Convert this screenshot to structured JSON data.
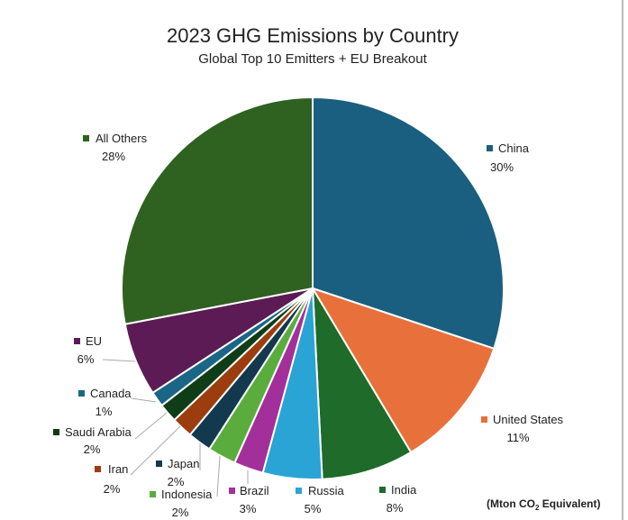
{
  "chart_data": {
    "type": "pie",
    "title": "2023 GHG Emissions by Country",
    "subtitle": "Global Top 10 Emitters + EU Breakout",
    "note": "(Mton CO2 Equivalent)",
    "note_parts": {
      "prefix": "(Mton CO",
      "subscript": "2",
      "suffix": " Equivalent)"
    },
    "start_angle_deg": 0,
    "direction": "clockwise",
    "legend": "none",
    "slices": [
      {
        "label": "China",
        "percent_label": "30%",
        "value": 30.1,
        "color": "#1a5f80"
      },
      {
        "label": "United States",
        "percent_label": "11%",
        "value": 11.3,
        "color": "#e8703a"
      },
      {
        "label": "India",
        "percent_label": "8%",
        "value": 7.8,
        "color": "#1e6b2a"
      },
      {
        "label": "Russia",
        "percent_label": "5%",
        "value": 5.0,
        "color": "#2aa3d5"
      },
      {
        "label": "Brazil",
        "percent_label": "3%",
        "value": 2.5,
        "color": "#a3309a"
      },
      {
        "label": "Indonesia",
        "percent_label": "2%",
        "value": 2.4,
        "color": "#5aad3c"
      },
      {
        "label": "Japan",
        "percent_label": "2%",
        "value": 2.0,
        "color": "#12394d"
      },
      {
        "label": "Iran",
        "percent_label": "2%",
        "value": 1.8,
        "color": "#9c3d10"
      },
      {
        "label": "Saudi Arabia",
        "percent_label": "2%",
        "value": 1.6,
        "color": "#0f3d17"
      },
      {
        "label": "Canada",
        "percent_label": "1%",
        "value": 1.3,
        "color": "#1a6687"
      },
      {
        "label": "EU",
        "percent_label": "6%",
        "value": 6.2,
        "color": "#5c1b54"
      },
      {
        "label": "All Others",
        "percent_label": "28%",
        "value": 28.0,
        "color": "#2f6121"
      }
    ]
  }
}
